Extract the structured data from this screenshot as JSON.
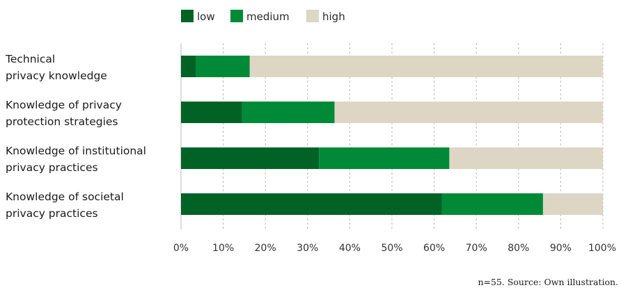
{
  "chart_data": {
    "type": "bar",
    "orientation": "horizontal",
    "stacked": true,
    "categories": [
      [
        "Technical",
        "privacy knowledge"
      ],
      [
        "Knowledge of privacy",
        "protection strategies"
      ],
      [
        "Knowledge of institutional",
        "privacy practices"
      ],
      [
        "Knowledge of societal",
        "privacy practices"
      ]
    ],
    "series": [
      {
        "name": "low",
        "color": "#006325",
        "values": [
          3.6,
          14.5,
          32.7,
          61.8
        ]
      },
      {
        "name": "medium",
        "color": "#008a37",
        "values": [
          12.7,
          21.9,
          30.9,
          24.0
        ]
      },
      {
        "name": "high",
        "color": "#ddd6c4",
        "values": [
          83.7,
          63.6,
          36.4,
          14.2
        ]
      }
    ],
    "x_ticks": [
      "0%",
      "10%",
      "20%",
      "30%",
      "40%",
      "50%",
      "60%",
      "70%",
      "80%",
      "90%",
      "100%"
    ],
    "xlim": [
      0,
      100
    ],
    "grid": "vertical dashed",
    "legend_position": "top"
  },
  "note": "n=55. Source: Own illustration."
}
